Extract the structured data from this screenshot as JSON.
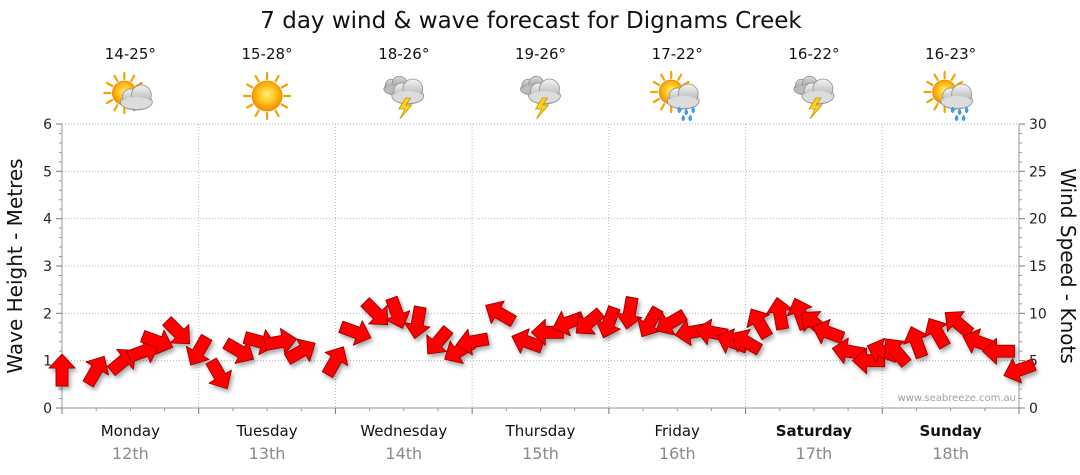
{
  "chart_data": {
    "type": "line",
    "title": "7 day wind & wave forecast for Dignams Creek",
    "ylabel_left": "Wave Height - Metres",
    "ylabel_right": "Wind Speed - Knots",
    "ylim_left": [
      0,
      6
    ],
    "ylim_right": [
      0,
      30
    ],
    "left_ticks": [
      "0",
      "1",
      "2",
      "3",
      "4",
      "5",
      "6"
    ],
    "right_ticks": [
      "0",
      "5",
      "10",
      "15",
      "20",
      "25",
      "30"
    ],
    "grid": true,
    "credit": "www.seabreeze.com.au",
    "days": [
      {
        "name": "Monday",
        "date": "12th",
        "temp": "14-25°",
        "icon": "partly-cloudy-icon",
        "bold": false
      },
      {
        "name": "Tuesday",
        "date": "13th",
        "temp": "15-28°",
        "icon": "sunny-icon",
        "bold": false
      },
      {
        "name": "Wednesday",
        "date": "14th",
        "temp": "18-26°",
        "icon": "thunderstorm-icon",
        "bold": false
      },
      {
        "name": "Thursday",
        "date": "15th",
        "temp": "19-26°",
        "icon": "thunderstorm-icon",
        "bold": false
      },
      {
        "name": "Friday",
        "date": "16th",
        "temp": "17-22°",
        "icon": "sun-showers-icon",
        "bold": false
      },
      {
        "name": "Saturday",
        "date": "17th",
        "temp": "16-22°",
        "icon": "thunderstorm-icon",
        "bold": true
      },
      {
        "name": "Sunday",
        "date": "18th",
        "temp": "16-23°",
        "icon": "sun-showers-icon",
        "bold": true
      }
    ],
    "series": [
      {
        "name": "Wind Speed - Knots",
        "color": "#ff0000",
        "x_days": [
          0.0,
          0.25,
          0.45,
          0.6,
          0.7,
          0.85,
          1.0,
          1.15,
          1.3,
          1.45,
          1.6,
          1.75,
          2.0,
          2.15,
          2.3,
          2.45,
          2.6,
          2.75,
          2.9,
          3.0,
          3.2,
          3.4,
          3.55,
          3.7,
          3.85,
          4.0,
          4.15,
          4.3,
          4.45,
          4.6,
          4.75,
          4.9,
          5.0,
          5.1,
          5.25,
          5.4,
          5.5,
          5.6,
          5.75,
          5.9,
          6.0,
          6.1,
          6.25,
          6.4,
          6.55,
          6.7,
          6.85,
          7.0
        ],
        "values": [
          4,
          4,
          5,
          6,
          7,
          8,
          6,
          3.5,
          6,
          7,
          7,
          6,
          5,
          8,
          10,
          10,
          9,
          7,
          6,
          7,
          10,
          7,
          8,
          9,
          9,
          9,
          10,
          9,
          9,
          8,
          8,
          7,
          7,
          9,
          10,
          10,
          9,
          8,
          6,
          5,
          6,
          6,
          7,
          8,
          9,
          7,
          6,
          4
        ],
        "direction_deg": [
          270,
          300,
          320,
          340,
          20,
          45,
          120,
          60,
          30,
          15,
          350,
          330,
          300,
          20,
          45,
          70,
          100,
          130,
          150,
          170,
          210,
          200,
          180,
          160,
          140,
          110,
          100,
          120,
          150,
          170,
          190,
          200,
          210,
          240,
          260,
          250,
          220,
          200,
          190,
          180,
          200,
          230,
          250,
          240,
          220,
          200,
          180,
          160
        ]
      }
    ]
  }
}
